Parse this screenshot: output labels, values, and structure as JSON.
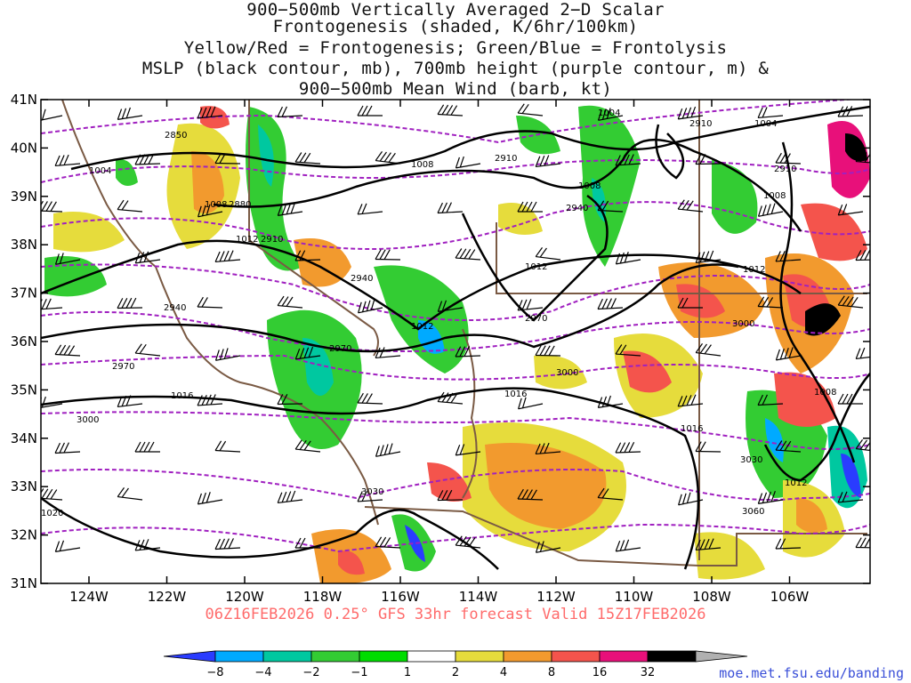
{
  "title": {
    "line1": "900−500mb Vertically Averaged 2−D Scalar",
    "line2": "Frontogenesis (shaded, K/6hr/100km)",
    "line3": "Yellow/Red = Frontogenesis;  Green/Blue = Frontolysis",
    "line4": "MSLP (black contour, mb), 700mb height (purple contour, m) &",
    "line5": "900−500mb Mean Wind (barb, kt)"
  },
  "axes": {
    "lat_labels": [
      "41N",
      "40N",
      "39N",
      "38N",
      "37N",
      "36N",
      "35N",
      "34N",
      "33N",
      "32N",
      "31N"
    ],
    "lon_labels": [
      "124W",
      "122W",
      "120W",
      "118W",
      "116W",
      "114W",
      "112W",
      "110W",
      "108W",
      "106W"
    ]
  },
  "mslp_labels": [
    "1004",
    "1008",
    "1012",
    "1016",
    "1020",
    "1004",
    "1008",
    "1008",
    "1012",
    "1012",
    "1016",
    "1016",
    "1012",
    "1008",
    "1004",
    "1008",
    "1012"
  ],
  "height_labels": [
    "2850",
    "2880",
    "2910",
    "2940",
    "2970",
    "3000",
    "3030",
    "2910",
    "2940",
    "2970",
    "3000",
    "3030",
    "3060",
    "2940",
    "2970",
    "2910",
    "3000",
    "2910"
  ],
  "valid_time": "06Z16FEB2026 0.25° GFS 33hr forecast Valid 15Z17FEB2026",
  "colorbar": {
    "labels": [
      "−8",
      "−4",
      "−2",
      "−1",
      "1",
      "2",
      "4",
      "8",
      "16",
      "32"
    ],
    "colors": [
      "#2a3cff",
      "#00aaff",
      "#00c8a0",
      "#33cc33",
      "#00dd00",
      "#ffffff",
      "#e6dc3c",
      "#f29a2e",
      "#f4544c",
      "#e8107a",
      "#000000",
      "#b0b0b0"
    ]
  },
  "source": "moe.met.fsu.edu/banding"
}
